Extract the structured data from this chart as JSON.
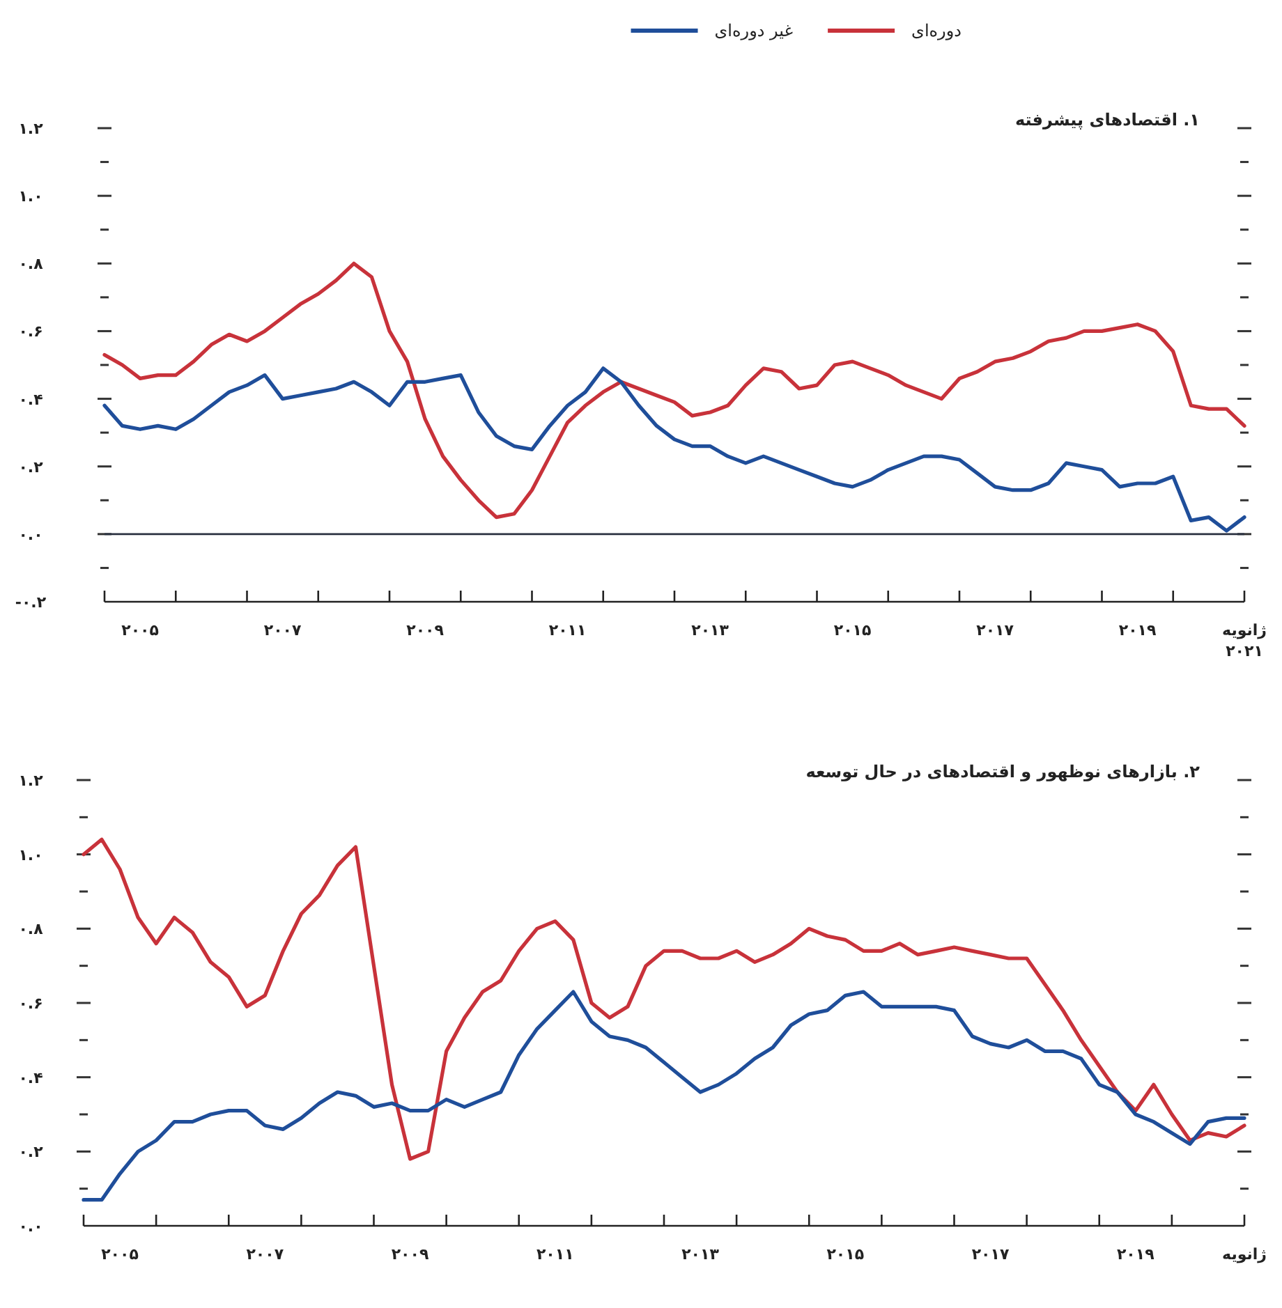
{
  "chart_data": [
    {
      "type": "line",
      "title": "۱. اقتصادهای پیشرفته",
      "legend": "top",
      "xlim": [
        2005,
        2021
      ],
      "ylim": [
        -0.2,
        1.2
      ],
      "xticks": [
        {
          "value": 2005,
          "label": null
        },
        {
          "value": 2006,
          "label": null
        },
        {
          "value": 2007,
          "label": null
        },
        {
          "value": 2008,
          "label": null
        },
        {
          "value": 2009,
          "label": null
        },
        {
          "value": 2010,
          "label": null
        },
        {
          "value": 2011,
          "label": null
        },
        {
          "value": 2012,
          "label": null
        },
        {
          "value": 2013,
          "label": null
        },
        {
          "value": 2014,
          "label": null
        },
        {
          "value": 2015,
          "label": null
        },
        {
          "value": 2016,
          "label": null
        },
        {
          "value": 2017,
          "label": null
        },
        {
          "value": 2018,
          "label": null
        },
        {
          "value": 2019,
          "label": null
        },
        {
          "value": 2020,
          "label": null
        },
        {
          "value": 2005.5,
          "label": "۲۰۰۵"
        },
        {
          "value": 2007.5,
          "label": "۲۰۰۷"
        },
        {
          "value": 2009.5,
          "label": "۲۰۰۹"
        },
        {
          "value": 2011.5,
          "label": "۲۰۱۱"
        },
        {
          "value": 2013.5,
          "label": "۲۰۱۳"
        },
        {
          "value": 2015.5,
          "label": "۲۰۱۵"
        },
        {
          "value": 2017.5,
          "label": "۲۰۱۷"
        },
        {
          "value": 2019.5,
          "label": "۲۰۱۹"
        },
        {
          "value": 2021,
          "label": "ژانویه ۲۰۲۱"
        }
      ],
      "yticks": [
        {
          "value": -0.2,
          "label": "-۰.۲"
        },
        {
          "value": -0.1,
          "label": null
        },
        {
          "value": 0,
          "label": "۰.۰"
        },
        {
          "value": 0.1,
          "label": null
        },
        {
          "value": 0.2,
          "label": "۰.۲"
        },
        {
          "value": 0.3,
          "label": null
        },
        {
          "value": 0.4,
          "label": "۰.۴"
        },
        {
          "value": 0.5,
          "label": null
        },
        {
          "value": 0.6,
          "label": "۰.۶"
        },
        {
          "value": 0.7,
          "label": null
        },
        {
          "value": 0.8,
          "label": "۰.۸"
        },
        {
          "value": 0.9,
          "label": null
        },
        {
          "value": 1.0,
          "label": "۱.۰"
        },
        {
          "value": 1.1,
          "label": null
        },
        {
          "value": 1.2,
          "label": "۱.۲"
        }
      ],
      "ref_lines": [
        {
          "axis": "y",
          "value": 0,
          "label": null,
          "color": "#2a3140"
        }
      ],
      "x": [
        2005,
        2005.25,
        2005.5,
        2005.75,
        2006,
        2006.25,
        2006.5,
        2006.75,
        2007,
        2007.25,
        2007.5,
        2007.75,
        2008,
        2008.25,
        2008.5,
        2008.75,
        2009,
        2009.25,
        2009.5,
        2009.75,
        2010,
        2010.25,
        2010.5,
        2010.75,
        2011,
        2011.25,
        2011.5,
        2011.75,
        2012,
        2012.25,
        2012.5,
        2012.75,
        2013,
        2013.25,
        2013.5,
        2013.75,
        2014,
        2014.25,
        2014.5,
        2014.75,
        2015,
        2015.25,
        2015.5,
        2015.75,
        2016,
        2016.25,
        2016.5,
        2016.75,
        2017,
        2017.25,
        2017.5,
        2017.75,
        2018,
        2018.25,
        2018.5,
        2018.75,
        2019,
        2019.25,
        2019.5,
        2019.75,
        2020,
        2020.25,
        2020.5,
        2020.75,
        2021
      ],
      "series": [
        {
          "name": "دوره‌ای",
          "color": "#c8323a",
          "values": [
            0.53,
            0.5,
            0.46,
            0.47,
            0.47,
            0.51,
            0.56,
            0.59,
            0.57,
            0.6,
            0.64,
            0.68,
            0.71,
            0.75,
            0.8,
            0.76,
            0.6,
            0.51,
            0.34,
            0.23,
            0.16,
            0.1,
            0.05,
            0.06,
            0.13,
            0.23,
            0.33,
            0.38,
            0.42,
            0.45,
            0.43,
            0.41,
            0.39,
            0.35,
            0.36,
            0.38,
            0.44,
            0.49,
            0.48,
            0.43,
            0.44,
            0.5,
            0.51,
            0.49,
            0.47,
            0.44,
            0.42,
            0.4,
            0.46,
            0.48,
            0.51,
            0.52,
            0.54,
            0.57,
            0.58,
            0.6,
            0.6,
            0.61,
            0.62,
            0.6,
            0.54,
            0.38,
            0.37,
            0.37,
            0.32
          ]
        },
        {
          "name": "غیر دوره‌ای",
          "color": "#1f4e9a",
          "values": [
            0.38,
            0.32,
            0.31,
            0.32,
            0.31,
            0.34,
            0.38,
            0.42,
            0.44,
            0.47,
            0.4,
            0.41,
            0.42,
            0.43,
            0.45,
            0.42,
            0.38,
            0.45,
            0.45,
            0.46,
            0.47,
            0.36,
            0.29,
            0.26,
            0.25,
            0.32,
            0.38,
            0.42,
            0.49,
            0.45,
            0.38,
            0.32,
            0.28,
            0.26,
            0.26,
            0.23,
            0.21,
            0.23,
            0.21,
            0.19,
            0.17,
            0.15,
            0.14,
            0.16,
            0.19,
            0.21,
            0.23,
            0.23,
            0.22,
            0.18,
            0.14,
            0.13,
            0.13,
            0.15,
            0.21,
            0.2,
            0.19,
            0.14,
            0.15,
            0.15,
            0.17,
            0.04,
            0.05,
            0.01,
            0.05
          ]
        }
      ]
    },
    {
      "type": "line",
      "title": "۲. بازارهای نوظهور و اقتصادهای در حال توسعه",
      "xlim": [
        2005,
        2021
      ],
      "ylim": [
        0,
        1.2
      ],
      "xticks": [
        {
          "value": 2005,
          "label": null
        },
        {
          "value": 2006,
          "label": null
        },
        {
          "value": 2007,
          "label": null
        },
        {
          "value": 2008,
          "label": null
        },
        {
          "value": 2009,
          "label": null
        },
        {
          "value": 2010,
          "label": null
        },
        {
          "value": 2011,
          "label": null
        },
        {
          "value": 2012,
          "label": null
        },
        {
          "value": 2013,
          "label": null
        },
        {
          "value": 2014,
          "label": null
        },
        {
          "value": 2015,
          "label": null
        },
        {
          "value": 2016,
          "label": null
        },
        {
          "value": 2017,
          "label": null
        },
        {
          "value": 2018,
          "label": null
        },
        {
          "value": 2019,
          "label": null
        },
        {
          "value": 2020,
          "label": null
        },
        {
          "value": 2005.5,
          "label": "۲۰۰۵"
        },
        {
          "value": 2007.5,
          "label": "۲۰۰۷"
        },
        {
          "value": 2009.5,
          "label": "۲۰۰۹"
        },
        {
          "value": 2011.5,
          "label": "۲۰۱۱"
        },
        {
          "value": 2013.5,
          "label": "۲۰۱۳"
        },
        {
          "value": 2015.5,
          "label": "۲۰۱۵"
        },
        {
          "value": 2017.5,
          "label": "۲۰۱۷"
        },
        {
          "value": 2019.5,
          "label": "۲۰۱۹"
        },
        {
          "value": 2021,
          "label": "ژانویه"
        }
      ],
      "yticks": [
        {
          "value": 0,
          "label": "۰.۰"
        },
        {
          "value": 0.1,
          "label": null
        },
        {
          "value": 0.2,
          "label": "۰.۲"
        },
        {
          "value": 0.3,
          "label": null
        },
        {
          "value": 0.4,
          "label": "۰.۴"
        },
        {
          "value": 0.5,
          "label": null
        },
        {
          "value": 0.6,
          "label": "۰.۶"
        },
        {
          "value": 0.7,
          "label": null
        },
        {
          "value": 0.8,
          "label": "۰.۸"
        },
        {
          "value": 0.9,
          "label": null
        },
        {
          "value": 1.0,
          "label": "۱.۰"
        },
        {
          "value": 1.1,
          "label": null
        },
        {
          "value": 1.2,
          "label": "۱.۲"
        }
      ],
      "x": [
        2005,
        2005.25,
        2005.5,
        2005.75,
        2006,
        2006.25,
        2006.5,
        2006.75,
        2007,
        2007.25,
        2007.5,
        2007.75,
        2008,
        2008.25,
        2008.5,
        2008.75,
        2009,
        2009.25,
        2009.5,
        2009.75,
        2010,
        2010.25,
        2010.5,
        2010.75,
        2011,
        2011.25,
        2011.5,
        2011.75,
        2012,
        2012.25,
        2012.5,
        2012.75,
        2013,
        2013.25,
        2013.5,
        2013.75,
        2014,
        2014.25,
        2014.5,
        2014.75,
        2015,
        2015.25,
        2015.5,
        2015.75,
        2016,
        2016.25,
        2016.5,
        2016.75,
        2017,
        2017.25,
        2017.5,
        2017.75,
        2018,
        2018.25,
        2018.5,
        2018.75,
        2019,
        2019.25,
        2019.5,
        2019.75,
        2020,
        2020.25,
        2020.5,
        2020.75,
        2021
      ],
      "series": [
        {
          "color": "#c8323a",
          "values": [
            1.0,
            1.04,
            0.96,
            0.83,
            0.76,
            0.83,
            0.79,
            0.71,
            0.67,
            0.59,
            0.62,
            0.74,
            0.84,
            0.89,
            0.97,
            1.02,
            0.7,
            0.38,
            0.18,
            0.2,
            0.47,
            0.56,
            0.63,
            0.66,
            0.74,
            0.8,
            0.82,
            0.77,
            0.6,
            0.56,
            0.59,
            0.7,
            0.74,
            0.74,
            0.72,
            0.72,
            0.74,
            0.71,
            0.73,
            0.76,
            0.8,
            0.78,
            0.77,
            0.74,
            0.74,
            0.76,
            0.73,
            0.74,
            0.75,
            0.74,
            0.73,
            0.72,
            0.72,
            0.65,
            0.58,
            0.5,
            0.43,
            0.36,
            0.31,
            0.38,
            0.3,
            0.23,
            0.25,
            0.24,
            0.27
          ]
        },
        {
          "color": "#1f4e9a",
          "values": [
            0.07,
            0.07,
            0.14,
            0.2,
            0.23,
            0.28,
            0.28,
            0.3,
            0.31,
            0.31,
            0.27,
            0.26,
            0.29,
            0.33,
            0.36,
            0.35,
            0.32,
            0.33,
            0.31,
            0.31,
            0.34,
            0.32,
            0.34,
            0.36,
            0.46,
            0.53,
            0.58,
            0.63,
            0.55,
            0.51,
            0.5,
            0.48,
            0.44,
            0.4,
            0.36,
            0.38,
            0.41,
            0.45,
            0.48,
            0.54,
            0.57,
            0.58,
            0.62,
            0.63,
            0.59,
            0.59,
            0.59,
            0.59,
            0.58,
            0.51,
            0.49,
            0.48,
            0.5,
            0.47,
            0.47,
            0.45,
            0.38,
            0.36,
            0.3,
            0.28,
            0.25,
            0.22,
            0.28,
            0.29,
            0.29
          ]
        }
      ]
    }
  ]
}
